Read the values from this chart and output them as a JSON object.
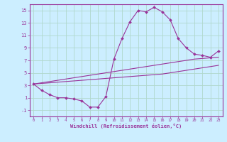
{
  "xlabel": "Windchill (Refroidissement éolien,°C)",
  "bg_color": "#cceeff",
  "grid_color": "#b0d8cc",
  "line_color": "#993399",
  "x_hours": [
    0,
    1,
    2,
    3,
    4,
    5,
    6,
    7,
    8,
    9,
    10,
    11,
    12,
    13,
    14,
    15,
    16,
    17,
    18,
    19,
    20,
    21,
    22,
    23
  ],
  "y_main": [
    3.2,
    2.2,
    1.5,
    1.0,
    1.0,
    0.8,
    0.5,
    -0.5,
    -0.5,
    1.2,
    7.2,
    10.5,
    13.2,
    15.0,
    14.8,
    15.5,
    14.8,
    13.5,
    10.5,
    9.0,
    8.0,
    7.8,
    7.5,
    8.5
  ],
  "y_line_top": [
    3.2,
    3.4,
    3.6,
    3.8,
    4.0,
    4.2,
    4.4,
    4.6,
    4.8,
    5.0,
    5.2,
    5.4,
    5.6,
    5.8,
    6.0,
    6.2,
    6.4,
    6.6,
    6.8,
    7.0,
    7.2,
    7.3,
    7.4,
    7.5
  ],
  "y_line_bot": [
    3.2,
    3.3,
    3.4,
    3.5,
    3.6,
    3.7,
    3.8,
    3.9,
    4.0,
    4.1,
    4.2,
    4.3,
    4.4,
    4.5,
    4.6,
    4.7,
    4.8,
    5.0,
    5.2,
    5.4,
    5.6,
    5.8,
    6.0,
    6.2
  ],
  "ylim": [
    -2,
    16
  ],
  "yticks": [
    -1,
    1,
    3,
    5,
    7,
    9,
    11,
    13,
    15
  ],
  "xlim": [
    -0.5,
    23.5
  ]
}
